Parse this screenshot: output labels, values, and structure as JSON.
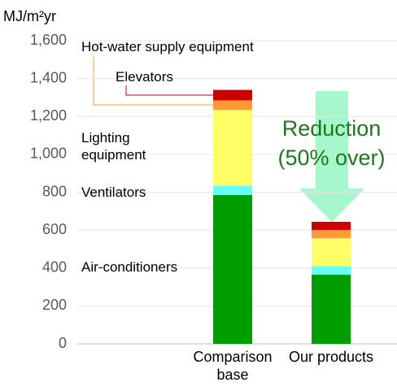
{
  "chart_data": {
    "type": "stacked_bar",
    "y_label": "MJ/m²yr",
    "categories": [
      "Comparison base",
      "Our products"
    ],
    "series": [
      {
        "name": "Air-conditioners",
        "color": "#009e00",
        "values": [
          785,
          365
        ]
      },
      {
        "name": "Ventilators",
        "color": "#66ffff",
        "values": [
          50,
          45
        ]
      },
      {
        "name": "Lighting equipment",
        "color": "#ffff66",
        "values": [
          400,
          148
        ]
      },
      {
        "name": "Hot-water supply equipment",
        "color": "#ff9933",
        "values": [
          50,
          43
        ]
      },
      {
        "name": "Elevators",
        "color": "#cc0000",
        "values": [
          55,
          43
        ]
      }
    ],
    "annotation": "Reduction (50% over)",
    "ylim": [
      0,
      1600
    ],
    "yticks": [
      0,
      {
        "value": 200,
        "label": "200"
      },
      400,
      600,
      800,
      {
        "value": 1000,
        "label": "1,000"
      },
      {
        "value": 1200,
        "label": "1,200"
      },
      {
        "value": 1400,
        "label": "1,400"
      },
      {
        "value": 1600,
        "label": "1,600"
      }
    ],
    "grid": true
  }
}
